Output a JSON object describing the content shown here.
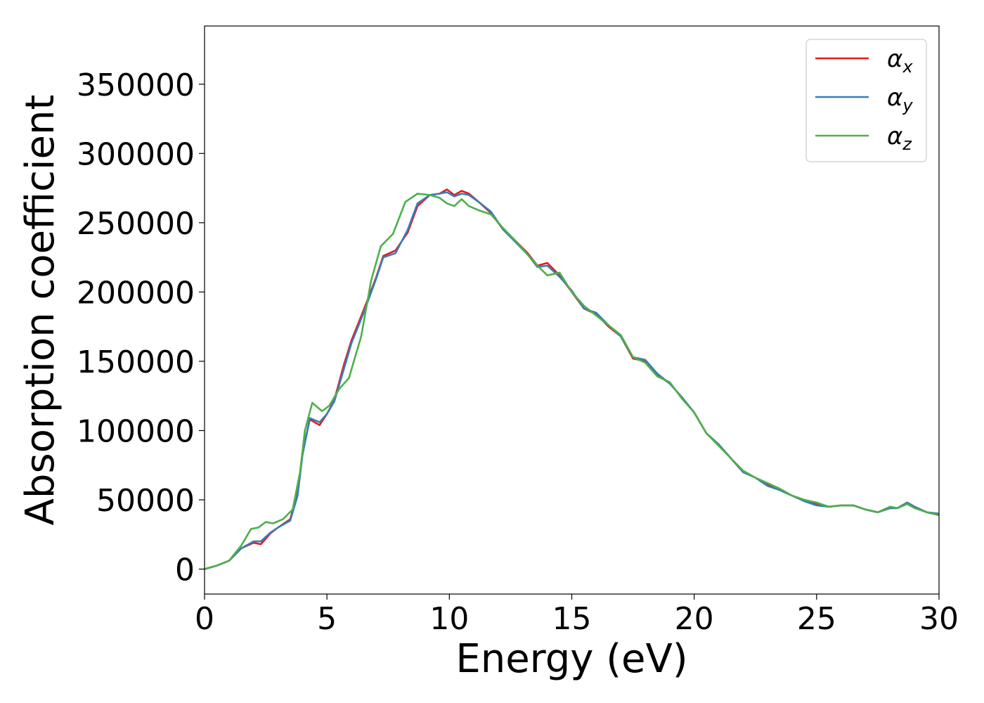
{
  "chart_data": {
    "type": "line",
    "title": "",
    "xlabel": "Energy (eV)",
    "ylabel": "Absorption coefficient",
    "xlim": [
      0,
      30
    ],
    "ylim": [
      -18000,
      392000
    ],
    "xticks": [
      0,
      5,
      10,
      15,
      20,
      25,
      30
    ],
    "yticks": [
      0,
      50000,
      100000,
      150000,
      200000,
      250000,
      300000,
      350000
    ],
    "grid": false,
    "legend_position": "top-right",
    "series": [
      {
        "name": "α_x",
        "label_base": "α",
        "label_sub": "x",
        "color": "#e41a1c",
        "x": [
          0,
          0.5,
          1,
          1.5,
          2,
          2.3,
          2.7,
          3,
          3.5,
          3.8,
          4,
          4.3,
          4.7,
          5,
          5.3,
          5.7,
          6,
          6.5,
          7,
          7.3,
          7.8,
          8.3,
          8.7,
          9.2,
          9.6,
          9.9,
          10.2,
          10.5,
          10.8,
          11.2,
          11.7,
          12.2,
          12.7,
          13.2,
          13.6,
          14,
          14.5,
          15,
          15.5,
          16,
          16.5,
          17,
          17.5,
          18,
          18.5,
          19,
          19.5,
          20,
          20.5,
          21,
          21.5,
          22,
          22.5,
          23,
          23.5,
          24,
          24.5,
          25,
          25.5,
          26,
          26.5,
          27,
          27.5,
          28,
          28.3,
          28.7,
          29,
          29.5,
          30
        ],
        "y": [
          0,
          2500,
          6000,
          15000,
          19000,
          18000,
          26000,
          30000,
          36000,
          55000,
          84000,
          108000,
          104000,
          112000,
          122000,
          148000,
          165000,
          187000,
          210000,
          226000,
          230000,
          243000,
          262000,
          270000,
          271000,
          274000,
          270000,
          273000,
          271000,
          265000,
          257000,
          245000,
          237000,
          228000,
          219000,
          221000,
          212000,
          200000,
          188000,
          184000,
          175000,
          168000,
          152000,
          150000,
          140000,
          134000,
          124000,
          113000,
          98000,
          90000,
          80000,
          70000,
          66000,
          61000,
          57000,
          53000,
          50000,
          47000,
          45000,
          46000,
          46000,
          43000,
          41000,
          44000,
          44000,
          48000,
          45000,
          41000,
          39000
        ]
      },
      {
        "name": "α_y",
        "label_base": "α",
        "label_sub": "y",
        "color": "#377eb8",
        "x": [
          0,
          0.5,
          1,
          1.5,
          2,
          2.3,
          2.7,
          3,
          3.5,
          3.8,
          4,
          4.3,
          4.7,
          5,
          5.3,
          5.7,
          6,
          6.5,
          7,
          7.3,
          7.8,
          8.3,
          8.7,
          9.2,
          9.6,
          9.9,
          10.2,
          10.5,
          10.8,
          11.2,
          11.7,
          12.2,
          12.7,
          13.2,
          13.6,
          14,
          14.5,
          15,
          15.5,
          16,
          16.5,
          17,
          17.5,
          18,
          18.5,
          19,
          19.5,
          20,
          20.5,
          21,
          21.5,
          22,
          22.5,
          23,
          23.5,
          24,
          24.5,
          25,
          25.5,
          26,
          26.5,
          27,
          27.5,
          28,
          28.3,
          28.7,
          29,
          29.5,
          30
        ],
        "y": [
          0,
          2500,
          6000,
          15000,
          20000,
          20000,
          26500,
          30000,
          35000,
          53000,
          82000,
          109000,
          106000,
          112000,
          121000,
          145000,
          163000,
          185000,
          209000,
          225000,
          228000,
          245000,
          264000,
          270000,
          271000,
          272000,
          269000,
          271000,
          270000,
          265000,
          258000,
          245000,
          236000,
          227000,
          218000,
          219000,
          211000,
          201000,
          188000,
          185000,
          176000,
          168000,
          153000,
          151000,
          141000,
          134000,
          124000,
          113000,
          98000,
          90000,
          80000,
          70000,
          66000,
          60000,
          57000,
          53000,
          49000,
          46000,
          45000,
          46000,
          46000,
          43000,
          41000,
          44000,
          44000,
          48000,
          45000,
          41000,
          40000
        ]
      },
      {
        "name": "α_z",
        "label_base": "α",
        "label_sub": "z",
        "color": "#4daf4a",
        "x": [
          0,
          0.5,
          1,
          1.5,
          1.9,
          2.2,
          2.5,
          2.8,
          3.2,
          3.6,
          3.9,
          4.1,
          4.4,
          4.8,
          5.1,
          5.5,
          5.9,
          6.4,
          6.8,
          7.2,
          7.7,
          8.2,
          8.7,
          9.2,
          9.6,
          9.9,
          10.2,
          10.5,
          10.8,
          11.2,
          11.7,
          12.2,
          12.7,
          13.2,
          13.6,
          14,
          14.5,
          15,
          15.5,
          16,
          16.5,
          17,
          17.5,
          18,
          18.5,
          19,
          19.5,
          20,
          20.5,
          21,
          21.5,
          22,
          22.5,
          23,
          23.5,
          24,
          24.5,
          25,
          25.5,
          26,
          26.5,
          27,
          27.5,
          28,
          28.3,
          28.7,
          29,
          29.5,
          30
        ],
        "y": [
          0,
          2500,
          6000,
          17000,
          29000,
          30000,
          34000,
          33000,
          36000,
          43000,
          70000,
          100000,
          120000,
          114000,
          118000,
          130000,
          138000,
          168000,
          208000,
          233000,
          242000,
          265000,
          271000,
          270000,
          268000,
          264000,
          262000,
          267000,
          262000,
          259000,
          256000,
          246000,
          237000,
          227000,
          219000,
          212000,
          214000,
          200000,
          190000,
          183000,
          176000,
          169000,
          153000,
          149000,
          139000,
          135000,
          123000,
          113000,
          98000,
          89000,
          80000,
          71000,
          66000,
          62000,
          58000,
          53000,
          50000,
          48000,
          45000,
          46000,
          46000,
          43000,
          41000,
          45000,
          44000,
          47000,
          44000,
          41000,
          39000
        ]
      }
    ]
  }
}
